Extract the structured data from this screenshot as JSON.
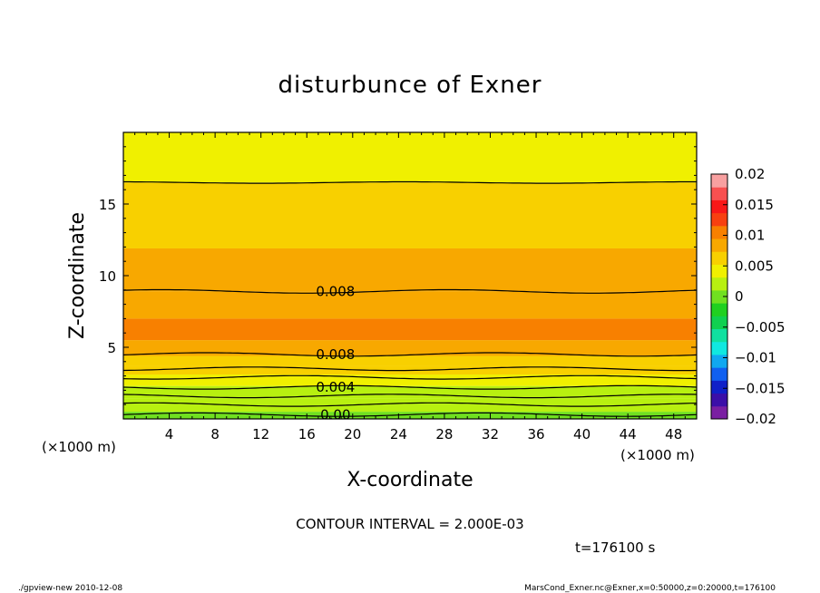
{
  "chart_data": {
    "type": "heatmap",
    "title": "disturbunce of Exner",
    "xlabel": "X-coordinate",
    "ylabel": "Z-coordinate",
    "x_unit": "(×1000 m)",
    "y_unit": "(×1000 m)",
    "xlim": [
      0,
      50
    ],
    "ylim": [
      0,
      20
    ],
    "x_ticks": [
      4,
      8,
      12,
      16,
      20,
      24,
      28,
      32,
      36,
      40,
      44,
      48
    ],
    "y_ticks": [
      5,
      10,
      15
    ],
    "colorbar": {
      "ticks": [
        0.02,
        0.015,
        0.01,
        0.005,
        0,
        -0.005,
        -0.01,
        -0.015,
        -0.02
      ],
      "tick_labels": [
        "0.02",
        "0.015",
        "0.01",
        "0.005",
        "0",
        "−0.005",
        "−0.01",
        "−0.015",
        "−0.02"
      ],
      "range": [
        -0.02,
        0.02
      ],
      "colors": [
        "#7a1fa2",
        "#3b0fa8",
        "#1020c8",
        "#1060f0",
        "#10a8f0",
        "#10e8e0",
        "#10e0a0",
        "#10d050",
        "#20d020",
        "#70e020",
        "#b8f010",
        "#f0f000",
        "#f8d000",
        "#f8a800",
        "#f88000",
        "#f84010",
        "#f81818",
        "#f85050",
        "#f8a0a0"
      ]
    },
    "bands": [
      {
        "z": [
          0,
          0.5
        ],
        "value": 0.0
      },
      {
        "z": [
          0.5,
          1.4
        ],
        "value": 0.002
      },
      {
        "z": [
          1.4,
          2.3
        ],
        "value": 0.003
      },
      {
        "z": [
          2.3,
          3.1
        ],
        "value": 0.004
      },
      {
        "z": [
          3.1,
          3.7
        ],
        "value": 0.0055
      },
      {
        "z": [
          3.7,
          4.4
        ],
        "value": 0.007
      },
      {
        "z": [
          4.4,
          5.5
        ],
        "value": 0.0085
      },
      {
        "z": [
          5.5,
          7.0
        ],
        "value": 0.0095
      },
      {
        "z": [
          7.0,
          8.9
        ],
        "value": 0.0085
      },
      {
        "z": [
          8.9,
          11.9
        ],
        "value": 0.0075
      },
      {
        "z": [
          11.9,
          16.5
        ],
        "value": 0.006
      },
      {
        "z": [
          16.5,
          20
        ],
        "value": 0.0045
      }
    ],
    "contours": [
      {
        "z": 0.3,
        "label": "0.00"
      },
      {
        "z": 1.0,
        "label": ""
      },
      {
        "z": 1.6,
        "label": ""
      },
      {
        "z": 2.2,
        "label": "0.004"
      },
      {
        "z": 2.9,
        "label": ""
      },
      {
        "z": 3.5,
        "label": ""
      },
      {
        "z": 4.5,
        "label": "0.008"
      },
      {
        "z": 8.9,
        "label": "0.008"
      },
      {
        "z": 16.5,
        "label": ""
      }
    ],
    "contour_interval_text": "CONTOUR INTERVAL = 2.000E-03"
  },
  "time_text": "t=176100 s",
  "footer": {
    "left": "./gpview-new   2010-12-08",
    "right": "MarsCond_Exner.nc@Exner,x=0:50000,z=0:20000,t=176100"
  }
}
